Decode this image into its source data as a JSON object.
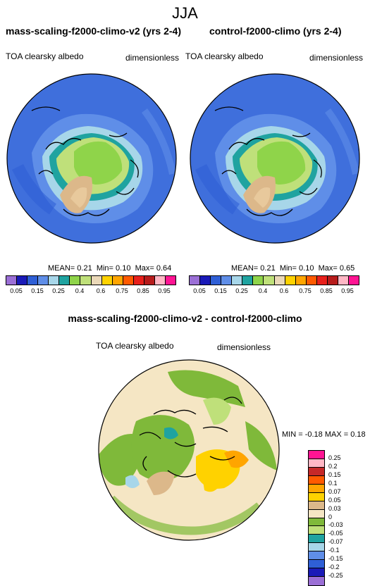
{
  "season": "JJA",
  "panels": [
    {
      "title": "mass-scaling-f2000-climo-v2 (yrs 2-4)",
      "variable": "TOA clearsky albedo",
      "units": "dimensionless",
      "mean_label": "MEAN=",
      "mean": "0.21",
      "min_label": "Min=",
      "min": "0.10",
      "max_label": "Max=",
      "max": "0.64"
    },
    {
      "title": "control-f2000-climo (yrs 2-4)",
      "variable": "TOA clearsky albedo",
      "units": "dimensionless",
      "mean_label": "MEAN=",
      "mean": "0.21",
      "min_label": "Min=",
      "min": "0.10",
      "max_label": "Max=",
      "max": "0.65"
    }
  ],
  "colorbar": {
    "labels": [
      "0.05",
      "0.15",
      "0.25",
      "0.4",
      "0.6",
      "0.75",
      "0.85",
      "0.95"
    ],
    "colors": [
      "#9b6fd6",
      "#1a1ab8",
      "#2f5fd6",
      "#5f8ee8",
      "#a7d6e9",
      "#1fa3a0",
      "#8fd44a",
      "#bfe07a",
      "#ead8b8",
      "#ffd200",
      "#ffa500",
      "#ff5a00",
      "#e8201c",
      "#b71c1c",
      "#ffb7c5",
      "#ff1493"
    ]
  },
  "diff": {
    "title": "mass-scaling-f2000-climo-v2 - control-f2000-climo",
    "variable": "TOA clearsky albedo",
    "units": "dimensionless",
    "min_label": "MIN =",
    "min": "-0.18",
    "max_label": "MAX =",
    "max": "0.18",
    "labels": [
      "0.25",
      "0.2",
      "0.15",
      "0.1",
      "0.07",
      "0.05",
      "0.03",
      "0",
      "-0.03",
      "-0.05",
      "-0.07",
      "-0.1",
      "-0.15",
      "-0.2",
      "-0.25"
    ],
    "colors": [
      "#ff1493",
      "#ffb7c5",
      "#c62828",
      "#ff5a00",
      "#ffa500",
      "#ffd200",
      "#dcb88a",
      "#f5e6c4",
      "#7fb93a",
      "#bfe07a",
      "#1fa3a0",
      "#a7d6e9",
      "#5f8ee8",
      "#2f5fd6",
      "#1a1ab8",
      "#9b6fd6"
    ]
  }
}
